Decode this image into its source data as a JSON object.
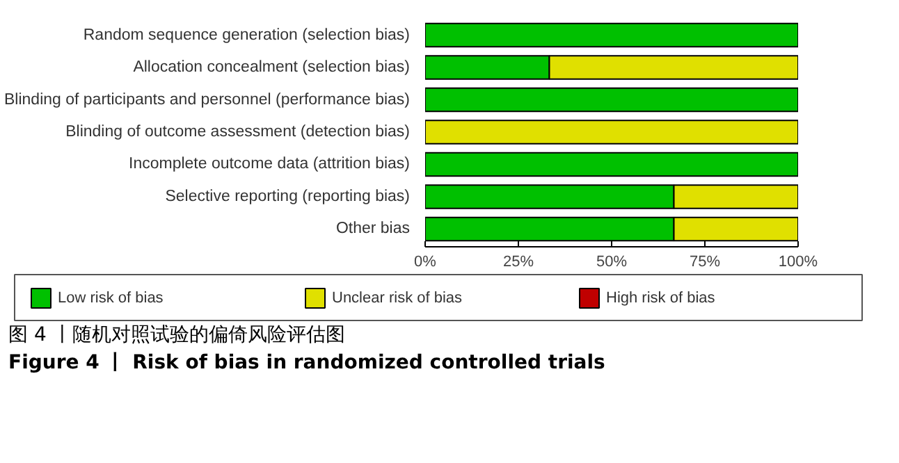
{
  "chart_data": {
    "type": "bar",
    "orientation": "horizontal",
    "stacked": true,
    "categories": [
      "Random sequence generation (selection bias)",
      "Allocation concealment (selection bias)",
      "Blinding of participants and personnel (performance bias)",
      "Blinding of outcome assessment (detection bias)",
      "Incomplete outcome data (attrition bias)",
      "Selective reporting (reporting bias)",
      "Other bias"
    ],
    "series": [
      {
        "name": "Low risk of bias",
        "color": "#00c000",
        "values": [
          100,
          33.3,
          100,
          0,
          100,
          66.7,
          66.7
        ]
      },
      {
        "name": "Unclear risk of bias",
        "color": "#e0e000",
        "values": [
          0,
          66.7,
          0,
          100,
          0,
          33.3,
          33.3
        ]
      },
      {
        "name": "High risk of bias",
        "color": "#c00000",
        "values": [
          0,
          0,
          0,
          0,
          0,
          0,
          0
        ]
      }
    ],
    "xlim": [
      0,
      100
    ],
    "xticks": [
      {
        "value": 0,
        "label": "0%"
      },
      {
        "value": 25,
        "label": "25%"
      },
      {
        "value": 50,
        "label": "50%"
      },
      {
        "value": 75,
        "label": "75%"
      },
      {
        "value": 100,
        "label": "100%"
      }
    ],
    "grid": false,
    "legend": "bottom",
    "annotations": [
      "图 4 丨随机对照试验的偏倚风险评估图",
      "Figure 4 丨 Risk of bias in randomized controlled trials"
    ]
  }
}
